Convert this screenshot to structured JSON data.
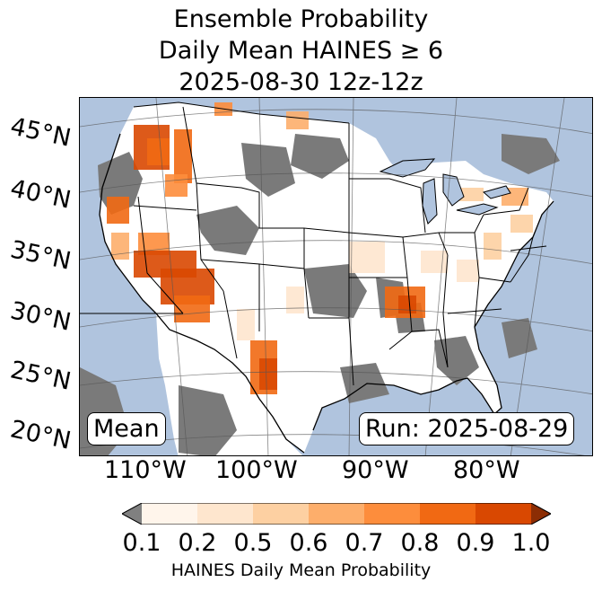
{
  "title": {
    "line1": "Ensemble Probability",
    "line2": "Daily Mean HAINES ≥ 6",
    "line3": "2025-08-30 12z-12z"
  },
  "map": {
    "lat_labels": [
      "45°N",
      "40°N",
      "35°N",
      "30°N",
      "25°N",
      "20°N"
    ],
    "lon_labels": [
      "110°W",
      "100°W",
      "90°W",
      "80°W"
    ],
    "stat_label": "Mean",
    "run_label": "Run: 2025-08-29",
    "colors": {
      "ocean": "#b0c4de",
      "no_data": "#7a7a7a",
      "land_low": "#ffffff"
    }
  },
  "colorbar": {
    "ticks": [
      "0.1",
      "0.2",
      "0.5",
      "0.6",
      "0.7",
      "0.8",
      "0.9",
      "1.0"
    ],
    "label": "HAINES Daily Mean Probability",
    "under_color": "#808080",
    "bin_colors": [
      "#fff5eb",
      "#fee6ce",
      "#fdd0a2",
      "#fdae6b",
      "#fd8d3c",
      "#f16913",
      "#d94801"
    ],
    "over_color": "#8c2d04"
  }
}
